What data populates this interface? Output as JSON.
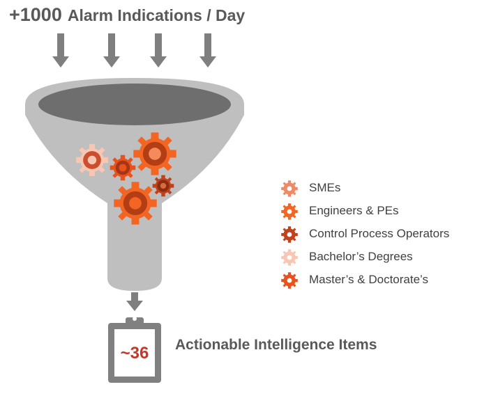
{
  "header": {
    "count": "+1000",
    "label": "Alarm Indications / Day"
  },
  "legend": {
    "items": [
      {
        "label": "SMEs",
        "color": "#f08a66",
        "icon": "gear-icon"
      },
      {
        "label": "Engineers & PEs",
        "color": "#f26522",
        "icon": "gear-icon"
      },
      {
        "label": "Control Process Operators",
        "color": "#c1421a",
        "icon": "gear-icon"
      },
      {
        "label": "Bachelor’s Degrees",
        "color": "#f9c6b4",
        "icon": "gear-icon"
      },
      {
        "label": "Master’s & Doctorate’s",
        "color": "#e8521c",
        "icon": "gear-icon"
      }
    ]
  },
  "result": {
    "value": "~36",
    "label": "Actionable Intelligence Items"
  },
  "colors": {
    "funnel": "#bfbfbf",
    "funnel_mouth": "#6e6e6e",
    "arrow": "#7f7f7f",
    "clipboard": "#808080",
    "text": "#595959"
  }
}
